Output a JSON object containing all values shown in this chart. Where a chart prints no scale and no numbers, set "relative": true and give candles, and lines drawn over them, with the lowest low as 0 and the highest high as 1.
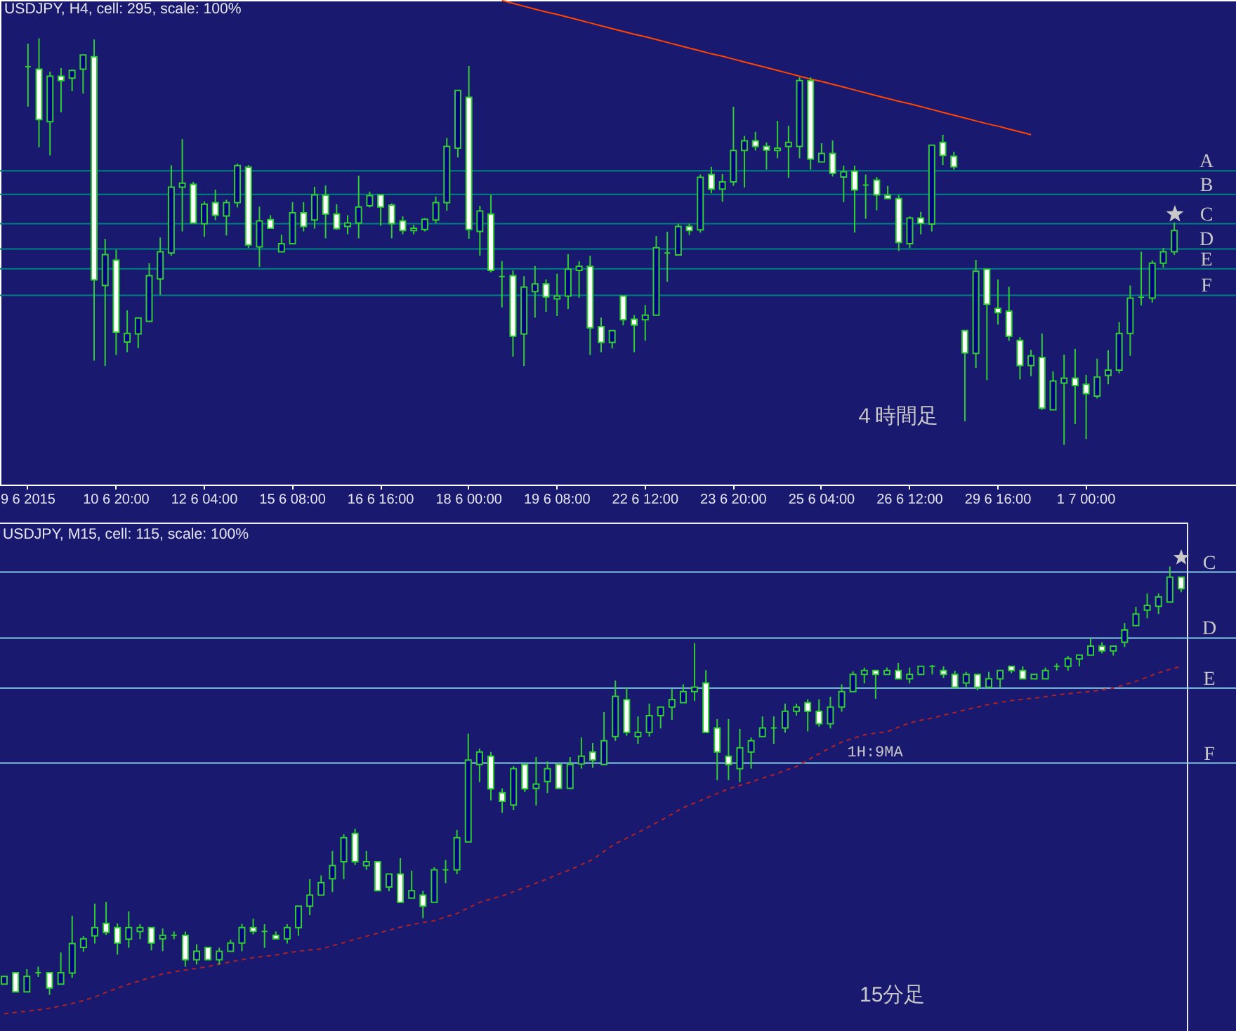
{
  "chart_data": [
    {
      "type": "candlestick",
      "title": "USDJPY, H4, cell: 295, scale: 100%",
      "relative": true,
      "tick_labels": "x",
      "color": "#32cd32",
      "categories": [
        "9 6 2015",
        null,
        null,
        null,
        null,
        null,
        null,
        null,
        "10 6 20:00",
        null,
        null,
        null,
        null,
        null,
        null,
        null,
        "12 6 04:00",
        null,
        null,
        null,
        null,
        null,
        null,
        null,
        "15 6 08:00",
        null,
        null,
        null,
        null,
        null,
        null,
        null,
        "16 6 16:00",
        null,
        null,
        null,
        null,
        null,
        null,
        null,
        "18 6 00:00",
        null,
        null,
        null,
        null,
        null,
        null,
        null,
        "19 6 08:00",
        null,
        null,
        null,
        null,
        null,
        null,
        null,
        "22 6 12:00",
        null,
        null,
        null,
        null,
        null,
        null,
        null,
        "23 6 20:00",
        null,
        null,
        null,
        null,
        null,
        null,
        null,
        "25 6 04:00",
        null,
        null,
        null,
        null,
        null,
        null,
        null,
        "26 6 12:00",
        null,
        null,
        null,
        null,
        null,
        null,
        null,
        "29 6 16:00",
        null,
        null,
        null,
        null,
        null,
        null,
        null,
        "1 7 00:00",
        null,
        null,
        null,
        null,
        null,
        null,
        null,
        null
      ],
      "ohlc": [
        [
          0.93,
          0.987,
          0.832,
          0.93
        ],
        [
          0.924,
          1.0,
          0.732,
          0.8
        ],
        [
          0.795,
          0.918,
          0.712,
          0.907
        ],
        [
          0.907,
          0.927,
          0.818,
          0.896
        ],
        [
          0.902,
          0.921,
          0.87,
          0.921
        ],
        [
          0.924,
          0.959,
          0.864,
          0.959
        ],
        [
          0.955,
          0.997,
          0.207,
          0.406
        ],
        [
          0.392,
          0.507,
          0.194,
          0.468
        ],
        [
          0.454,
          0.48,
          0.221,
          0.277
        ],
        [
          0.253,
          0.331,
          0.228,
          0.274
        ],
        [
          0.273,
          0.312,
          0.238,
          0.312
        ],
        [
          0.304,
          0.447,
          0.304,
          0.416
        ],
        [
          0.408,
          0.51,
          0.369,
          0.475
        ],
        [
          0.472,
          0.688,
          0.465,
          0.634
        ],
        [
          0.634,
          0.752,
          0.525,
          0.644
        ],
        [
          0.641,
          0.647,
          0.546,
          0.546
        ],
        [
          0.544,
          0.599,
          0.512,
          0.592
        ],
        [
          0.596,
          0.628,
          0.553,
          0.565
        ],
        [
          0.563,
          0.603,
          0.515,
          0.596
        ],
        [
          0.596,
          0.692,
          0.584,
          0.687
        ],
        [
          0.683,
          0.688,
          0.484,
          0.492
        ],
        [
          0.487,
          0.586,
          0.438,
          0.551
        ],
        [
          0.554,
          0.565,
          0.533,
          0.533
        ],
        [
          0.475,
          0.517,
          0.475,
          0.495
        ],
        [
          0.495,
          0.597,
          0.495,
          0.571
        ],
        [
          0.571,
          0.597,
          0.525,
          0.537
        ],
        [
          0.553,
          0.635,
          0.532,
          0.615
        ],
        [
          0.614,
          0.638,
          0.508,
          0.568
        ],
        [
          0.568,
          0.592,
          0.529,
          0.532
        ],
        [
          0.537,
          0.565,
          0.518,
          0.546
        ],
        [
          0.546,
          0.662,
          0.508,
          0.585
        ],
        [
          0.588,
          0.623,
          0.584,
          0.613
        ],
        [
          0.615,
          0.615,
          0.539,
          0.585
        ],
        [
          0.59,
          0.594,
          0.508,
          0.544
        ],
        [
          0.551,
          0.562,
          0.518,
          0.527
        ],
        [
          0.527,
          0.541,
          0.518,
          0.533
        ],
        [
          0.53,
          0.558,
          0.525,
          0.555
        ],
        [
          0.553,
          0.611,
          0.545,
          0.596
        ],
        [
          0.596,
          0.755,
          0.576,
          0.734
        ],
        [
          0.73,
          0.872,
          0.707,
          0.872
        ],
        [
          0.855,
          0.932,
          0.507,
          0.53
        ],
        [
          0.525,
          0.588,
          0.465,
          0.575
        ],
        [
          0.568,
          0.615,
          0.424,
          0.429
        ],
        [
          0.414,
          0.452,
          0.338,
          0.414
        ],
        [
          0.416,
          0.429,
          0.217,
          0.267
        ],
        [
          0.273,
          0.415,
          0.194,
          0.388
        ],
        [
          0.377,
          0.44,
          0.313,
          0.396
        ],
        [
          0.396,
          0.407,
          0.327,
          0.364
        ],
        [
          0.359,
          0.421,
          0.317,
          0.366
        ],
        [
          0.366,
          0.469,
          0.334,
          0.432
        ],
        [
          0.429,
          0.452,
          0.362,
          0.439
        ],
        [
          0.439,
          0.465,
          0.221,
          0.288
        ],
        [
          0.291,
          0.313,
          0.228,
          0.252
        ],
        [
          0.252,
          0.281,
          0.237,
          0.281
        ],
        [
          0.366,
          0.366,
          0.294,
          0.308
        ],
        [
          0.309,
          0.319,
          0.228,
          0.295
        ],
        [
          0.308,
          0.344,
          0.256,
          0.319
        ],
        [
          0.319,
          0.514,
          0.319,
          0.485
        ],
        [
          0.472,
          0.524,
          0.401,
          0.472
        ],
        [
          0.467,
          0.544,
          0.467,
          0.537
        ],
        [
          0.537,
          0.544,
          0.516,
          0.527
        ],
        [
          0.529,
          0.665,
          0.522,
          0.658
        ],
        [
          0.665,
          0.684,
          0.619,
          0.629
        ],
        [
          0.629,
          0.666,
          0.598,
          0.647
        ],
        [
          0.647,
          0.832,
          0.637,
          0.724
        ],
        [
          0.724,
          0.76,
          0.633,
          0.748
        ],
        [
          0.748,
          0.77,
          0.724,
          0.734
        ],
        [
          0.734,
          0.744,
          0.677,
          0.725
        ],
        [
          0.724,
          0.797,
          0.705,
          0.73
        ],
        [
          0.734,
          0.785,
          0.657,
          0.744
        ],
        [
          0.734,
          0.904,
          0.705,
          0.896
        ],
        [
          0.896,
          0.904,
          0.677,
          0.703
        ],
        [
          0.696,
          0.742,
          0.696,
          0.717
        ],
        [
          0.717,
          0.749,
          0.66,
          0.668
        ],
        [
          0.659,
          0.687,
          0.597,
          0.672
        ],
        [
          0.673,
          0.687,
          0.522,
          0.627
        ],
        [
          0.639,
          0.665,
          0.556,
          0.639
        ],
        [
          0.651,
          0.659,
          0.577,
          0.615
        ],
        [
          0.614,
          0.637,
          0.606,
          0.606
        ],
        [
          0.606,
          0.614,
          0.477,
          0.498
        ],
        [
          0.495,
          0.562,
          0.484,
          0.558
        ],
        [
          0.558,
          0.573,
          0.518,
          0.545
        ],
        [
          0.543,
          0.737,
          0.525,
          0.737
        ],
        [
          0.744,
          0.763,
          0.688,
          0.712
        ],
        [
          0.71,
          0.721,
          0.677,
          0.684
        ],
        [
          0.281,
          0.281,
          0.058,
          0.226
        ],
        [
          0.225,
          0.455,
          0.189,
          0.427
        ],
        [
          0.432,
          0.432,
          0.159,
          0.346
        ],
        [
          0.336,
          0.407,
          0.296,
          0.325
        ],
        [
          0.329,
          0.389,
          0.256,
          0.267
        ],
        [
          0.257,
          0.265,
          0.161,
          0.195
        ],
        [
          0.195,
          0.234,
          0.169,
          0.219
        ],
        [
          0.215,
          0.274,
          0.086,
          0.09
        ],
        [
          0.086,
          0.181,
          0.086,
          0.157
        ],
        [
          0.152,
          0.222,
          0,
          0.164
        ],
        [
          0.164,
          0.236,
          0.051,
          0.146
        ],
        [
          0.149,
          0.172,
          0.014,
          0.126
        ],
        [
          0.12,
          0.212,
          0.114,
          0.167
        ],
        [
          0.171,
          0.233,
          0.149,
          0.184
        ],
        [
          0.184,
          0.302,
          0.176,
          0.274
        ],
        [
          0.274,
          0.392,
          0.219,
          0.361
        ],
        [
          0.363,
          0.475,
          0.343,
          0.363
        ],
        [
          0.361,
          0.454,
          0.35,
          0.447
        ],
        [
          0.447,
          0.484,
          0.436,
          0.475
        ],
        [
          0.475,
          0.547,
          0.467,
          0.527
        ]
      ],
      "colors": [
        "#32cd32",
        "#ffffff",
        "#000080",
        "#ffffff",
        "#000080",
        "#000080",
        "#ffffff",
        "#000080",
        "#ffffff",
        "#000080",
        "#000080",
        "#000080",
        "#000080",
        "#000080",
        "#000080",
        "#ffffff",
        "#000080",
        "#ffffff",
        "#000080",
        "#000080",
        "#ffffff",
        "#000080",
        "#ffffff",
        "#000080",
        "#000080",
        "#ffffff",
        "#000080",
        "#ffffff",
        "#ffffff",
        "#000080",
        "#000080",
        "#000080",
        "#ffffff",
        "#ffffff",
        "#ffffff",
        "#000080",
        "#000080",
        "#000080",
        "#000080",
        "#000080",
        "#ffffff",
        "#000080",
        "#ffffff",
        "#32cd32",
        "#ffffff",
        "#000080",
        "#000080",
        "#ffffff",
        "#000080",
        "#000080",
        "#000080",
        "#ffffff",
        "#ffffff",
        "#000080",
        "#ffffff",
        "#ffffff",
        "#000080",
        "#000080",
        "#32cd32",
        "#000080",
        "#ffffff",
        "#000080",
        "#ffffff",
        "#000080",
        "#000080",
        "#000080",
        "#ffffff",
        "#ffffff",
        "#000080",
        "#000080",
        "#000080",
        "#ffffff",
        "#000080",
        "#ffffff",
        "#000080",
        "#ffffff",
        "#32cd32",
        "#ffffff",
        "#ffffff",
        "#ffffff",
        "#000080",
        "#ffffff",
        "#000080",
        "#ffffff",
        "#ffffff",
        "#ffffff",
        "#000080",
        "#ffffff",
        "#ffffff",
        "#ffffff",
        "#ffffff",
        "#000080",
        "#ffffff",
        "#000080",
        "#000080",
        "#ffffff",
        "#ffffff",
        "#000080",
        "#000080",
        "#000080",
        "#000080",
        "#32cd32",
        "#000080",
        "#000080",
        "#000080"
      ],
      "series": [
        {
          "type": "line",
          "color": "#ff4500",
          "values": [
            null,
            null,
            null,
            null,
            null,
            null,
            null,
            null,
            null,
            null,
            null,
            null,
            null,
            null,
            null,
            null,
            null,
            null,
            null,
            null,
            null,
            null,
            null,
            null,
            null,
            null,
            null,
            null,
            null,
            null,
            null,
            null,
            null,
            null,
            null,
            null,
            null,
            null,
            null,
            null,
            null,
            null,
            null,
            1.093,
            1.086,
            1.079,
            1.072,
            1.065,
            1.059,
            1.052,
            1.045,
            1.038,
            1.031,
            1.024,
            1.017,
            1.01,
            1.004,
            0.997,
            0.99,
            0.983,
            0.976,
            0.969,
            0.962,
            0.956,
            0.949,
            0.942,
            0.935,
            0.928,
            0.921,
            0.914,
            0.907,
            0.9,
            0.894,
            0.887,
            0.88,
            0.873,
            0.866,
            0.859,
            0.852,
            0.845,
            0.839,
            0.832,
            0.825,
            0.818,
            0.811,
            0.804,
            0.797,
            0.79,
            0.784,
            0.777,
            0.77,
            0.763,
            null,
            null,
            null,
            null,
            null,
            null,
            null,
            null,
            null,
            null,
            null,
            null,
            null
          ]
        }
      ],
      "ref_lines": [
        {
          "axis": "y",
          "value": 0.674,
          "label": "A",
          "color": "#008080"
        },
        {
          "axis": "y",
          "value": 0.616,
          "label": "B",
          "color": "#008080"
        },
        {
          "axis": "y",
          "value": 0.544,
          "label": "C",
          "color": "#008080"
        },
        {
          "axis": "y",
          "value": 0.482,
          "label": "D",
          "color": "#008080"
        },
        {
          "axis": "y",
          "value": 0.433,
          "label": "E",
          "color": "#008080"
        },
        {
          "axis": "y",
          "value": 0.368,
          "label": "F",
          "color": "#008080"
        }
      ],
      "annotations": [
        "４時間足"
      ]
    },
    {
      "type": "candlestick",
      "title": "USDJPY, M15, cell: 115, scale: 100%",
      "relative": true,
      "tick_labels": false,
      "color": "#32cd32",
      "categories": [
        null,
        null,
        null,
        null,
        null,
        null,
        null,
        null,
        null,
        null,
        null,
        null,
        null,
        null,
        null,
        null,
        null,
        null,
        null,
        null,
        null,
        null,
        null,
        null,
        null,
        null,
        null,
        null,
        null,
        null,
        null,
        null,
        null,
        null,
        null,
        null,
        null,
        null,
        null,
        null,
        null,
        null,
        null,
        null,
        null,
        null,
        null,
        null,
        null,
        null,
        null,
        null,
        null,
        null,
        null,
        null,
        null,
        null,
        null,
        null,
        null,
        null,
        null,
        null,
        null,
        null,
        null,
        null,
        null,
        null,
        null,
        null,
        null,
        null,
        null,
        null,
        null,
        null,
        null,
        null,
        null,
        null,
        null,
        null,
        null,
        null,
        null,
        null,
        null,
        null,
        null,
        null,
        null,
        null,
        null,
        null,
        null,
        null,
        null,
        null,
        null,
        null,
        null,
        null,
        null
      ],
      "ohlc": [
        [
          0.025,
          0.043,
          0.025,
          0.043
        ],
        [
          0.052,
          0.052,
          0.007,
          0.007
        ],
        [
          0.007,
          0.06,
          0.007,
          0.043
        ],
        [
          0.052,
          0.066,
          0.042,
          0.052
        ],
        [
          0.052,
          0.052,
          0,
          0.016
        ],
        [
          0.025,
          0.099,
          0.025,
          0.052
        ],
        [
          0.051,
          0.185,
          0.04,
          0.12
        ],
        [
          0.111,
          0.137,
          0.101,
          0.131
        ],
        [
          0.138,
          0.213,
          0.12,
          0.157
        ],
        [
          0.167,
          0.217,
          0.14,
          0.146
        ],
        [
          0.157,
          0.167,
          0.094,
          0.121
        ],
        [
          0.13,
          0.195,
          0.11,
          0.157
        ],
        [
          0.148,
          0.165,
          0.13,
          0.157
        ],
        [
          0.157,
          0.157,
          0.104,
          0.121
        ],
        [
          0.131,
          0.155,
          0.102,
          0.139
        ],
        [
          0.139,
          0.148,
          0.13,
          0.139
        ],
        [
          0.139,
          0.148,
          0.066,
          0.082
        ],
        [
          0.082,
          0.118,
          0.071,
          0.102
        ],
        [
          0.111,
          0.111,
          0.082,
          0.082
        ],
        [
          0.082,
          0.11,
          0.071,
          0.102
        ],
        [
          0.102,
          0.129,
          0.102,
          0.121
        ],
        [
          0.121,
          0.166,
          0.102,
          0.157
        ],
        [
          0.157,
          0.178,
          0.141,
          0.148
        ],
        [
          0.148,
          0.165,
          0.11,
          0.148
        ],
        [
          0.139,
          0.148,
          0.131,
          0.131
        ],
        [
          0.131,
          0.165,
          0.12,
          0.157
        ],
        [
          0.157,
          0.207,
          0.138,
          0.207
        ],
        [
          0.207,
          0.27,
          0.186,
          0.233
        ],
        [
          0.233,
          0.279,
          0.233,
          0.262
        ],
        [
          0.271,
          0.336,
          0.24,
          0.302
        ],
        [
          0.311,
          0.375,
          0.27,
          0.367
        ],
        [
          0.377,
          0.388,
          0.303,
          0.311
        ],
        [
          0.302,
          0.336,
          0.292,
          0.311
        ],
        [
          0.311,
          0.311,
          0.243,
          0.243
        ],
        [
          0.252,
          0.282,
          0.242,
          0.282
        ],
        [
          0.282,
          0.319,
          0.216,
          0.216
        ],
        [
          0.226,
          0.29,
          0.226,
          0.243
        ],
        [
          0.233,
          0.243,
          0.179,
          0.207
        ],
        [
          0.216,
          0.298,
          0.216,
          0.292
        ],
        [
          0.292,
          0.315,
          0.261,
          0.292
        ],
        [
          0.292,
          0.385,
          0.282,
          0.367
        ],
        [
          0.357,
          0.61,
          0.357,
          0.548
        ],
        [
          0.538,
          0.575,
          0.497,
          0.567
        ],
        [
          0.557,
          0.567,
          0.454,
          0.481
        ],
        [
          0.472,
          0.482,
          0.425,
          0.452
        ],
        [
          0.443,
          0.534,
          0.432,
          0.528
        ],
        [
          0.538,
          0.538,
          0.473,
          0.481
        ],
        [
          0.482,
          0.555,
          0.442,
          0.492
        ],
        [
          0.498,
          0.545,
          0.471,
          0.528
        ],
        [
          0.538,
          0.538,
          0.482,
          0.482
        ],
        [
          0.482,
          0.555,
          0.482,
          0.538
        ],
        [
          0.539,
          0.601,
          0.528,
          0.557
        ],
        [
          0.567,
          0.588,
          0.53,
          0.548
        ],
        [
          0.538,
          0.66,
          0.538,
          0.593
        ],
        [
          0.603,
          0.734,
          0.593,
          0.697
        ],
        [
          0.689,
          0.718,
          0.605,
          0.613
        ],
        [
          0.603,
          0.65,
          0.586,
          0.613
        ],
        [
          0.613,
          0.68,
          0.603,
          0.652
        ],
        [
          0.652,
          0.672,
          0.622,
          0.672
        ],
        [
          0.672,
          0.714,
          0.642,
          0.689
        ],
        [
          0.682,
          0.725,
          0.682,
          0.708
        ],
        [
          0.708,
          0.821,
          0.686,
          0.718
        ],
        [
          0.728,
          0.758,
          0.613,
          0.613
        ],
        [
          0.623,
          0.644,
          0.501,
          0.567
        ],
        [
          0.557,
          0.644,
          0.501,
          0.538
        ],
        [
          0.528,
          0.621,
          0.497,
          0.577
        ],
        [
          0.567,
          0.601,
          0.528,
          0.593
        ],
        [
          0.603,
          0.65,
          0.603,
          0.623
        ],
        [
          0.623,
          0.65,
          0.586,
          0.623
        ],
        [
          0.623,
          0.68,
          0.612,
          0.662
        ],
        [
          0.662,
          0.68,
          0.652,
          0.672
        ],
        [
          0.682,
          0.69,
          0.615,
          0.662
        ],
        [
          0.662,
          0.69,
          0.626,
          0.633
        ],
        [
          0.633,
          0.696,
          0.622,
          0.672
        ],
        [
          0.672,
          0.725,
          0.661,
          0.708
        ],
        [
          0.708,
          0.755,
          0.708,
          0.748
        ],
        [
          0.748,
          0.764,
          0.727,
          0.757
        ],
        [
          0.757,
          0.757,
          0.691,
          0.748
        ],
        [
          0.748,
          0.764,
          0.748,
          0.757
        ],
        [
          0.757,
          0.775,
          0.738,
          0.738
        ],
        [
          0.738,
          0.764,
          0.727,
          0.748
        ],
        [
          0.748,
          0.767,
          0.748,
          0.767
        ],
        [
          0.767,
          0.77,
          0.748,
          0.767
        ],
        [
          0.757,
          0.767,
          0.74,
          0.748
        ],
        [
          0.748,
          0.757,
          0.718,
          0.718
        ],
        [
          0.728,
          0.754,
          0.718,
          0.748
        ],
        [
          0.748,
          0.748,
          0.711,
          0.718
        ],
        [
          0.718,
          0.754,
          0.718,
          0.738
        ],
        [
          0.738,
          0.757,
          0.718,
          0.757
        ],
        [
          0.767,
          0.767,
          0.751,
          0.757
        ],
        [
          0.757,
          0.767,
          0.738,
          0.738
        ],
        [
          0.738,
          0.748,
          0.738,
          0.748
        ],
        [
          0.738,
          0.764,
          0.738,
          0.757
        ],
        [
          0.767,
          0.774,
          0.757,
          0.767
        ],
        [
          0.767,
          0.791,
          0.757,
          0.785
        ],
        [
          0.784,
          0.793,
          0.767,
          0.793
        ],
        [
          0.793,
          0.833,
          0.793,
          0.814
        ],
        [
          0.814,
          0.823,
          0.797,
          0.803
        ],
        [
          0.803,
          0.814,
          0.792,
          0.814
        ],
        [
          0.823,
          0.868,
          0.812,
          0.852
        ],
        [
          0.862,
          0.906,
          0.862,
          0.889
        ],
        [
          0.898,
          0.937,
          0.879,
          0.909
        ],
        [
          0.907,
          0.937,
          0.889,
          0.929
        ],
        [
          0.917,
          1.0,
          0.917,
          0.975
        ],
        [
          0.975,
          0.975,
          0.94,
          0.948
        ]
      ],
      "colors": [
        "#000080",
        "#ffffff",
        "#000080",
        "#32cd32",
        "#ffffff",
        "#000080",
        "#000080",
        "#000080",
        "#000080",
        "#ffffff",
        "#ffffff",
        "#000080",
        "#000080",
        "#ffffff",
        "#000080",
        "#32cd32",
        "#ffffff",
        "#000080",
        "#ffffff",
        "#000080",
        "#000080",
        "#000080",
        "#ffffff",
        "#32cd32",
        "#ffffff",
        "#000080",
        "#000080",
        "#000080",
        "#000080",
        "#000080",
        "#000080",
        "#ffffff",
        "#000080",
        "#ffffff",
        "#000080",
        "#ffffff",
        "#000080",
        "#ffffff",
        "#000080",
        "#32cd32",
        "#000080",
        "#000080",
        "#000080",
        "#ffffff",
        "#ffffff",
        "#000080",
        "#ffffff",
        "#000080",
        "#000080",
        "#ffffff",
        "#000080",
        "#000080",
        "#ffffff",
        "#000080",
        "#000080",
        "#ffffff",
        "#000080",
        "#000080",
        "#000080",
        "#000080",
        "#000080",
        "#000080",
        "#ffffff",
        "#ffffff",
        "#ffffff",
        "#000080",
        "#000080",
        "#000080",
        "#32cd32",
        "#000080",
        "#000080",
        "#ffffff",
        "#ffffff",
        "#000080",
        "#000080",
        "#000080",
        "#000080",
        "#ffffff",
        "#000080",
        "#ffffff",
        "#000080",
        "#000080",
        "#32cd32",
        "#ffffff",
        "#ffffff",
        "#000080",
        "#ffffff",
        "#000080",
        "#000080",
        "#ffffff",
        "#ffffff",
        "#000080",
        "#000080",
        "#32cd32",
        "#000080",
        "#000080",
        "#000080",
        "#ffffff",
        "#000080",
        "#000080",
        "#000080",
        "#000080",
        "#000080",
        "#000080",
        "#ffffff"
      ],
      "series": [
        {
          "type": "line",
          "name": "1H:9MA",
          "color": "#b22222",
          "line_style": "dashed",
          "values": [
            -0.044,
            -0.041,
            -0.038,
            -0.035,
            -0.031,
            -0.026,
            -0.02,
            -0.013,
            -0.005,
            0.006,
            0.016,
            0.025,
            0.033,
            0.041,
            0.049,
            0.054,
            0.058,
            0.062,
            0.066,
            0.072,
            0.077,
            0.082,
            0.087,
            0.09,
            0.093,
            0.098,
            0.102,
            0.105,
            0.107,
            0.115,
            0.122,
            0.13,
            0.137,
            0.144,
            0.151,
            0.158,
            0.164,
            0.169,
            0.173,
            0.182,
            0.19,
            0.203,
            0.216,
            0.224,
            0.231,
            0.241,
            0.251,
            0.261,
            0.271,
            0.282,
            0.292,
            0.304,
            0.316,
            0.335,
            0.353,
            0.366,
            0.379,
            0.393,
            0.407,
            0.422,
            0.437,
            0.448,
            0.459,
            0.47,
            0.481,
            0.489,
            0.497,
            0.506,
            0.514,
            0.524,
            0.533,
            0.548,
            0.563,
            0.577,
            0.59,
            0.599,
            0.607,
            0.611,
            0.614,
            0.625,
            0.635,
            0.641,
            0.646,
            0.653,
            0.659,
            0.666,
            0.672,
            0.678,
            0.683,
            0.687,
            0.69,
            0.693,
            0.696,
            0.7,
            0.703,
            0.706,
            0.708,
            0.712,
            0.716,
            0.724,
            0.732,
            0.742,
            0.752,
            0.76,
            0.767
          ]
        }
      ],
      "ref_lines": [
        {
          "axis": "y",
          "value": 0.987,
          "label": "C",
          "color": "#87ceeb"
        },
        {
          "axis": "y",
          "value": 0.833,
          "label": "D",
          "color": "#87ceeb"
        },
        {
          "axis": "y",
          "value": 0.716,
          "label": "E",
          "color": "#87ceeb"
        },
        {
          "axis": "y",
          "value": 0.541,
          "label": "F",
          "color": "#87ceeb"
        }
      ],
      "annotations": [
        "15分足"
      ]
    }
  ]
}
